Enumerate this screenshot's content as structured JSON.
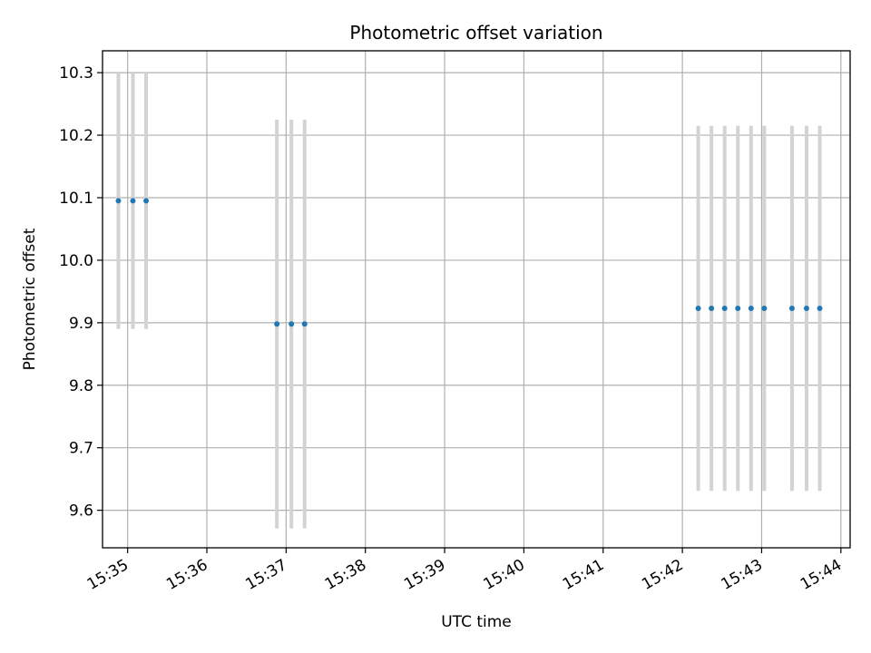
{
  "chart_data": {
    "type": "scatter",
    "title": "Photometric offset variation",
    "xlabel": "UTC time",
    "ylabel": "Photometric offset",
    "xlim": [
      "15:34:41",
      "15:44:07"
    ],
    "ylim": [
      9.54,
      10.335
    ],
    "grid": true,
    "x_ticks": [
      "15:35",
      "15:36",
      "15:37",
      "15:38",
      "15:39",
      "15:40",
      "15:41",
      "15:42",
      "15:43",
      "15:44"
    ],
    "y_ticks": [
      "9.6",
      "9.7",
      "9.8",
      "9.9",
      "10.0",
      "10.1",
      "10.2",
      "10.3"
    ],
    "colors": {
      "points": "#1f77b4",
      "errorbars": "#d3d3d3",
      "grid": "#b0b0b0"
    },
    "series": [
      {
        "x": [
          "15:34:53",
          "15:35:04",
          "15:35:14",
          "15:36:53",
          "15:37:04",
          "15:37:14",
          "15:42:12",
          "15:42:22",
          "15:42:32",
          "15:42:42",
          "15:42:52",
          "15:43:02",
          "15:43:23",
          "15:43:34",
          "15:43:44"
        ],
        "y": [
          10.095,
          10.095,
          10.095,
          9.898,
          9.898,
          9.898,
          9.923,
          9.923,
          9.923,
          9.923,
          9.923,
          9.923,
          9.923,
          9.923,
          9.923
        ],
        "yerr": [
          0.205,
          0.205,
          0.205,
          0.327,
          0.327,
          0.327,
          0.292,
          0.292,
          0.292,
          0.292,
          0.292,
          0.292,
          0.292,
          0.292,
          0.292
        ]
      }
    ]
  }
}
